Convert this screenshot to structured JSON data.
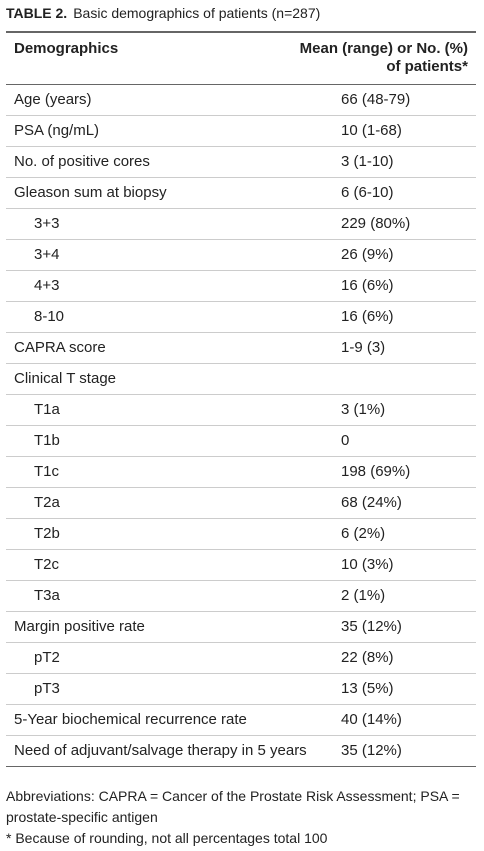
{
  "caption": {
    "label": "TABLE 2.",
    "title": "Basic demographics of patients (n=287)"
  },
  "table": {
    "header": [
      "Demographics",
      "Mean (range) or No. (%) of patients*"
    ],
    "rows": [
      {
        "label": "Age (years)",
        "value": "66 (48-79)"
      },
      {
        "label": "PSA (ng/mL)",
        "value": "10 (1-68)"
      },
      {
        "label": "No. of positive cores",
        "value": "3 (1-10)"
      },
      {
        "label": "Gleason sum at biopsy",
        "value": "6 (6-10)",
        "subrows": [
          {
            "label": "3+3",
            "value": "229 (80%)"
          },
          {
            "label": "3+4",
            "value": "26 (9%)"
          },
          {
            "label": "4+3",
            "value": "16 (6%)"
          },
          {
            "label": "8-10",
            "value": "16 (6%)"
          }
        ]
      },
      {
        "label": "CAPRA score",
        "value": "1-9 (3)"
      },
      {
        "label": "Clinical T stage",
        "subrows": [
          {
            "label": "T1a",
            "value": "3 (1%)"
          },
          {
            "label": "T1b",
            "value": "0"
          },
          {
            "label": "T1c",
            "value": "198 (69%)"
          },
          {
            "label": "T2a",
            "value": "68 (24%)"
          },
          {
            "label": "T2b",
            "value": "6 (2%)"
          },
          {
            "label": "T2c",
            "value": "10 (3%)"
          },
          {
            "label": "T3a",
            "value": "2 (1%)"
          }
        ]
      },
      {
        "label": "Margin positive rate",
        "value": "35 (12%)",
        "subrows": [
          {
            "label": "pT2",
            "value": "22 (8%)"
          },
          {
            "label": "pT3",
            "value": "13 (5%)"
          }
        ]
      },
      {
        "label": "5-Year biochemical recurrence rate",
        "value": "40 (14%)"
      },
      {
        "label": "Need of adjuvant/salvage therapy in 5 years",
        "value": "35 (12%)"
      }
    ]
  },
  "footnotes": [
    "Abbreviations: CAPRA = Cancer of the Prostate Risk Assessment; PSA = prostate-specific antigen",
    "*  Because of rounding, not all percentages total 100"
  ]
}
